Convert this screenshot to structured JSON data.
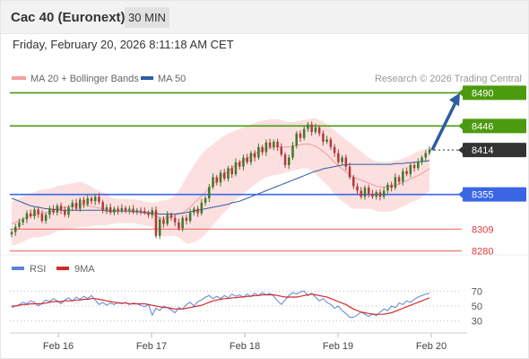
{
  "header": {
    "title": "Cac 40 (Euronext)",
    "timeframe": "30 MIN"
  },
  "datetime": "Friday, February 20, 2026 8:11:18 AM CET",
  "legend": {
    "bollinger": "MA 20 + Bollinger Bands",
    "ma50": "MA 50",
    "credit": "Research © 2026 Trading Central"
  },
  "rsi_legend": {
    "rsi": "RSI",
    "ma9": "9MA"
  },
  "colors": {
    "green": "#4c9a0e",
    "blue": "#3a66e6",
    "red": "#e23b3b",
    "price_label": "#333333",
    "arrow": "#2e5da1",
    "band_fill": "#fce0e0",
    "candle_up": "#3f7a2c",
    "candle_down": "#b23a3a",
    "rsi_line": "#5b84d8",
    "rsi_ma": "#d42a2a"
  },
  "chart_data": [
    {
      "type": "candlestick",
      "instrument": "Cac 40 (Euronext)",
      "interval": "30 MIN",
      "x_ticks": [
        "Feb 16",
        "Feb 17",
        "Feb 18",
        "Feb 19",
        "Feb 20"
      ],
      "y_range": [
        8270,
        8500
      ],
      "levels": [
        {
          "value": 8490,
          "label": "8490",
          "kind": "resistance",
          "color": "#4c9a0e"
        },
        {
          "value": 8446,
          "label": "8446",
          "kind": "resistance",
          "color": "#4c9a0e"
        },
        {
          "value": 8414,
          "label": "8414",
          "kind": "last_price",
          "color": "#333333"
        },
        {
          "value": 8355,
          "label": "8355",
          "kind": "pivot",
          "color": "#3a66e6"
        },
        {
          "value": 8309,
          "label": "8309",
          "kind": "support",
          "color": "#e23b3b"
        },
        {
          "value": 8280,
          "label": "8280",
          "kind": "support",
          "color": "#e23b3b"
        }
      ],
      "close_series": [
        8305,
        8312,
        8318,
        8322,
        8330,
        8326,
        8335,
        8329,
        8320,
        8328,
        8336,
        8331,
        8340,
        8334,
        8328,
        8338,
        8344,
        8336,
        8348,
        8342,
        8350,
        8346,
        8352,
        8345,
        8334,
        8338,
        8331,
        8336,
        8333,
        8337,
        8334,
        8336,
        8332,
        8334,
        8333,
        8331,
        8328,
        8334,
        8300,
        8322,
        8316,
        8328,
        8324,
        8318,
        8310,
        8324,
        8320,
        8331,
        8336,
        8330,
        8344,
        8350,
        8365,
        8378,
        8371,
        8384,
        8376,
        8390,
        8382,
        8398,
        8392,
        8404,
        8398,
        8410,
        8404,
        8418,
        8411,
        8424,
        8418,
        8425,
        8418,
        8408,
        8394,
        8404,
        8420,
        8436,
        8430,
        8442,
        8448,
        8438,
        8444,
        8436,
        8425,
        8428,
        8418,
        8410,
        8398,
        8404,
        8392,
        8378,
        8366,
        8360,
        8352,
        8364,
        8356,
        8352,
        8358,
        8352,
        8360,
        8368,
        8364,
        8378,
        8372,
        8386,
        8382,
        8394,
        8390,
        8398,
        8404,
        8410,
        8414
      ],
      "ma20_series": [
        8316,
        8318,
        8320,
        8322,
        8325,
        8327,
        8328,
        8329,
        8330,
        8331,
        8332,
        8334,
        8336,
        8337,
        8338,
        8339,
        8340,
        8341,
        8342,
        8341,
        8340,
        8339,
        8338,
        8337,
        8336,
        8335,
        8334,
        8333,
        8333,
        8333,
        8333,
        8333,
        8333,
        8332,
        8331,
        8330,
        8329,
        8328,
        8326,
        8324,
        8323,
        8324,
        8325,
        8327,
        8329,
        8331,
        8334,
        8338,
        8343,
        8348,
        8353,
        8358,
        8363,
        8368,
        8373,
        8378,
        8382,
        8386,
        8390,
        8394,
        8397,
        8400,
        8403,
        8406,
        8409,
        8412,
        8414,
        8416,
        8417,
        8418,
        8418,
        8418,
        8418,
        8418,
        8419,
        8420,
        8421,
        8422,
        8422,
        8421,
        8419,
        8416,
        8412,
        8408,
        8403,
        8398,
        8393,
        8389,
        8385,
        8381,
        8378,
        8376,
        8374,
        8372,
        8370,
        8368,
        8366,
        8365,
        8365,
        8365,
        8366,
        8367,
        8369,
        8371,
        8373,
        8376,
        8378,
        8380,
        8383,
        8386,
        8389
      ],
      "bb_upper_series": [
        8345,
        8348,
        8350,
        8352,
        8355,
        8357,
        8358,
        8360,
        8361,
        8362,
        8363,
        8364,
        8366,
        8367,
        8368,
        8369,
        8370,
        8371,
        8372,
        8370,
        8368,
        8365,
        8362,
        8360,
        8358,
        8356,
        8352,
        8350,
        8349,
        8349,
        8349,
        8349,
        8349,
        8348,
        8347,
        8346,
        8345,
        8344,
        8345,
        8346,
        8347,
        8348,
        8350,
        8354,
        8360,
        8368,
        8378,
        8386,
        8394,
        8402,
        8408,
        8414,
        8418,
        8422,
        8426,
        8430,
        8433,
        8436,
        8438,
        8440,
        8442,
        8444,
        8446,
        8448,
        8450,
        8452,
        8453,
        8454,
        8455,
        8455,
        8455,
        8454,
        8452,
        8451,
        8451,
        8452,
        8453,
        8454,
        8455,
        8456,
        8456,
        8454,
        8452,
        8448,
        8444,
        8440,
        8436,
        8432,
        8428,
        8424,
        8420,
        8416,
        8412,
        8408,
        8404,
        8401,
        8399,
        8398,
        8398,
        8398,
        8399,
        8400,
        8401,
        8403,
        8405,
        8407,
        8410,
        8412,
        8414,
        8416,
        8418
      ],
      "bb_lower_series": [
        8287,
        8288,
        8290,
        8292,
        8295,
        8297,
        8298,
        8298,
        8299,
        8300,
        8301,
        8304,
        8306,
        8307,
        8308,
        8309,
        8310,
        8311,
        8312,
        8312,
        8312,
        8313,
        8314,
        8314,
        8314,
        8314,
        8316,
        8316,
        8317,
        8317,
        8317,
        8317,
        8317,
        8316,
        8315,
        8314,
        8313,
        8312,
        8307,
        8302,
        8299,
        8300,
        8300,
        8300,
        8298,
        8294,
        8290,
        8290,
        8292,
        8294,
        8298,
        8302,
        8308,
        8314,
        8320,
        8326,
        8331,
        8336,
        8342,
        8348,
        8352,
        8356,
        8360,
        8364,
        8368,
        8372,
        8375,
        8378,
        8379,
        8381,
        8381,
        8382,
        8384,
        8385,
        8387,
        8388,
        8389,
        8390,
        8389,
        8386,
        8382,
        8378,
        8372,
        8368,
        8362,
        8356,
        8350,
        8346,
        8342,
        8338,
        8336,
        8336,
        8336,
        8336,
        8336,
        8335,
        8333,
        8332,
        8332,
        8332,
        8333,
        8334,
        8337,
        8339,
        8341,
        8345,
        8346,
        8348,
        8352,
        8356,
        8360
      ],
      "ma50_series": [
        8350,
        8348,
        8346,
        8344,
        8342,
        8340,
        8339,
        8338,
        8337,
        8336,
        8336,
        8335,
        8335,
        8334,
        8334,
        8334,
        8334,
        8334,
        8334,
        8334,
        8334,
        8334,
        8334,
        8334,
        8334,
        8333,
        8333,
        8333,
        8333,
        8333,
        8333,
        8333,
        8332,
        8332,
        8332,
        8331,
        8331,
        8330,
        8330,
        8329,
        8329,
        8329,
        8329,
        8329,
        8330,
        8330,
        8331,
        8332,
        8333,
        8334,
        8335,
        8336,
        8337,
        8338,
        8339,
        8340,
        8341,
        8342,
        8344,
        8345,
        8346,
        8348,
        8350,
        8352,
        8354,
        8356,
        8358,
        8360,
        8362,
        8364,
        8366,
        8368,
        8370,
        8372,
        8374,
        8376,
        8378,
        8380,
        8382,
        8384,
        8386,
        8387,
        8389,
        8390,
        8391,
        8392,
        8393,
        8394,
        8394,
        8395,
        8395,
        8395,
        8395,
        8395,
        8395,
        8395,
        8395,
        8395,
        8395,
        8395,
        8395,
        8396,
        8396,
        8396,
        8397,
        8397,
        8398,
        8398,
        8399,
        8399,
        8400
      ],
      "projection": {
        "from": 8414,
        "to": 8490
      }
    },
    {
      "type": "line",
      "name": "RSI",
      "x_ticks": [
        "Feb 16",
        "Feb 17",
        "Feb 18",
        "Feb 19",
        "Feb 20"
      ],
      "y_ticks": [
        70,
        50,
        30
      ],
      "y_range": [
        20,
        80
      ],
      "rsi_series": [
        48,
        50,
        52,
        55,
        53,
        57,
        55,
        50,
        54,
        58,
        56,
        60,
        57,
        53,
        58,
        61,
        57,
        62,
        59,
        63,
        60,
        64,
        58,
        52,
        55,
        51,
        54,
        52,
        55,
        53,
        55,
        52,
        54,
        53,
        51,
        49,
        52,
        38,
        47,
        44,
        50,
        48,
        45,
        41,
        48,
        46,
        52,
        55,
        50,
        56,
        58,
        62,
        64,
        60,
        63,
        60,
        64,
        61,
        66,
        63,
        65,
        62,
        66,
        63,
        67,
        64,
        68,
        65,
        67,
        63,
        57,
        52,
        58,
        64,
        68,
        66,
        69,
        70,
        64,
        67,
        62,
        57,
        60,
        55,
        52,
        47,
        50,
        44,
        40,
        35,
        35,
        38,
        42,
        39,
        36,
        40,
        37,
        42,
        46,
        44,
        50,
        48,
        54,
        52,
        57,
        55,
        59,
        62,
        64,
        66,
        67
      ],
      "ma9_series": [
        50,
        50,
        51,
        52,
        52,
        53,
        53,
        53,
        53,
        54,
        55,
        56,
        56,
        56,
        57,
        57,
        57,
        58,
        58,
        59,
        59,
        60,
        60,
        59,
        58,
        57,
        56,
        55,
        54,
        54,
        54,
        53,
        53,
        53,
        53,
        53,
        52,
        51,
        50,
        49,
        48,
        48,
        47,
        46,
        46,
        46,
        47,
        48,
        49,
        50,
        51,
        53,
        55,
        57,
        58,
        59,
        60,
        60,
        61,
        61,
        62,
        62,
        63,
        63,
        64,
        64,
        65,
        65,
        65,
        65,
        64,
        63,
        62,
        62,
        62,
        62,
        63,
        64,
        65,
        66,
        65,
        64,
        63,
        62,
        60,
        58,
        56,
        54,
        52,
        49,
        46,
        44,
        42,
        41,
        40,
        39,
        39,
        39,
        39,
        40,
        41,
        43,
        45,
        47,
        49,
        51,
        53,
        55,
        57,
        59,
        61
      ]
    }
  ]
}
